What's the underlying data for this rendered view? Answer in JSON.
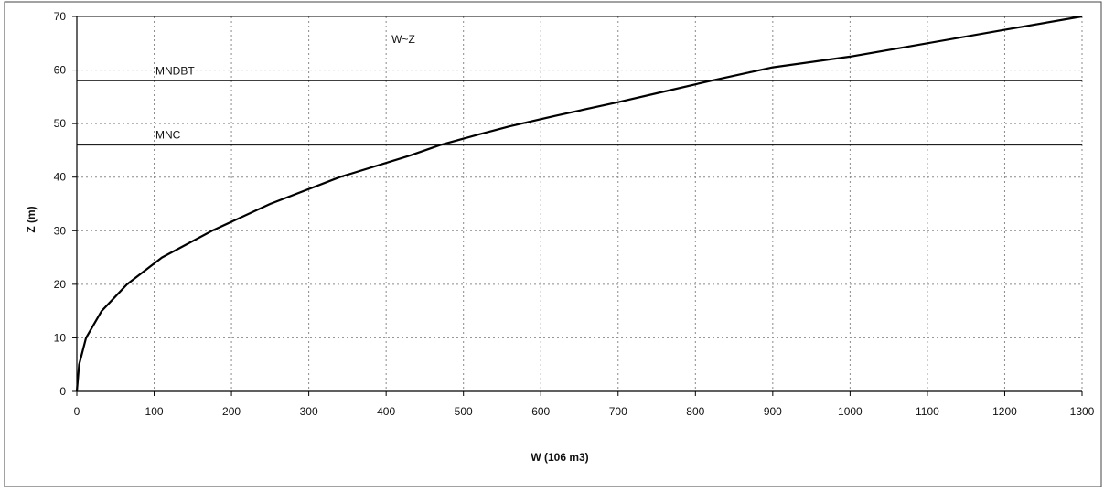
{
  "chart_data": {
    "type": "line",
    "title": "W~Z",
    "xlabel": "W (106  m3)",
    "ylabel": "Z (m)",
    "xlim": [
      0,
      1300
    ],
    "ylim": [
      0,
      70
    ],
    "xticks": [
      0,
      100,
      200,
      300,
      400,
      500,
      600,
      700,
      800,
      900,
      1000,
      1100,
      1200,
      1300
    ],
    "yticks": [
      0,
      10,
      20,
      30,
      40,
      50,
      60,
      70
    ],
    "grid": true,
    "series": [
      {
        "name": "",
        "x": [
          0,
          3,
          12,
          32,
          65,
          110,
          175,
          250,
          340,
          430,
          470,
          520,
          560,
          620,
          700,
          760,
          820,
          900,
          1000,
          1100,
          1200,
          1300
        ],
        "y": [
          0,
          5,
          10,
          15,
          20,
          25,
          30,
          35,
          40,
          44,
          46,
          48,
          49.5,
          51.5,
          54,
          56,
          58,
          60.5,
          62.5,
          65,
          67.5,
          70
        ],
        "color": "#000000"
      }
    ],
    "reference_lines": [
      {
        "label": "MNDBT",
        "y": 58
      },
      {
        "label": "MNC",
        "y": 46
      }
    ]
  }
}
